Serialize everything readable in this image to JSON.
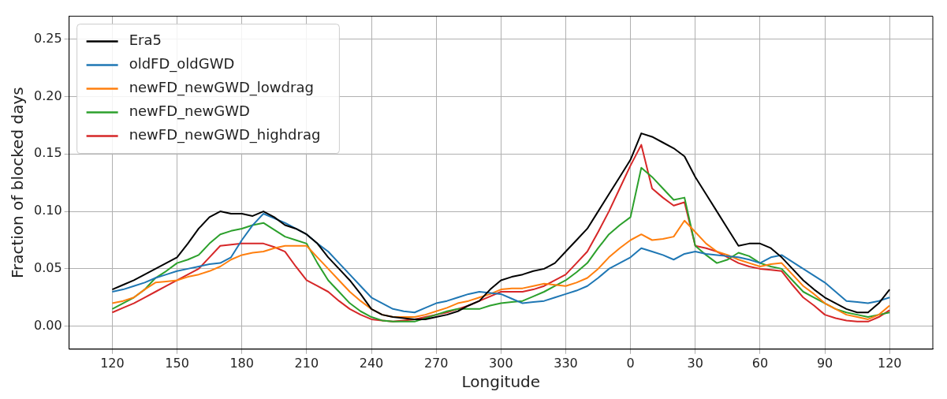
{
  "chart_data": {
    "type": "line",
    "xlabel": "Longitude",
    "ylabel": "Fraction of blocked days",
    "categories": [
      "120",
      null,
      null,
      null,
      null,
      null,
      "150",
      null,
      null,
      null,
      null,
      null,
      "180",
      null,
      null,
      null,
      null,
      null,
      "210",
      null,
      null,
      null,
      null,
      null,
      "240",
      null,
      null,
      null,
      null,
      null,
      "270",
      null,
      null,
      null,
      null,
      null,
      "300",
      null,
      null,
      null,
      null,
      null,
      "330",
      null,
      null,
      null,
      null,
      null,
      "0",
      null,
      null,
      null,
      null,
      null,
      "30",
      null,
      null,
      null,
      null,
      null,
      "60",
      null,
      null,
      null,
      null,
      null,
      "90",
      null,
      null,
      null,
      null,
      null,
      "120"
    ],
    "series": [
      {
        "name": "Era5",
        "color": "#000000",
        "values": [
          0.032,
          0.036,
          0.04,
          0.045,
          0.05,
          0.055,
          0.06,
          0.072,
          0.085,
          0.095,
          0.1,
          0.098,
          0.098,
          0.096,
          0.1,
          0.095,
          0.088,
          0.085,
          0.08,
          0.072,
          0.06,
          0.05,
          0.04,
          0.028,
          0.015,
          0.01,
          0.008,
          0.007,
          0.006,
          0.006,
          0.008,
          0.01,
          0.013,
          0.018,
          0.022,
          0.032,
          0.04,
          0.043,
          0.045,
          0.048,
          0.05,
          0.055,
          0.065,
          0.075,
          0.085,
          0.1,
          0.115,
          0.13,
          0.145,
          0.168,
          0.165,
          0.16,
          0.155,
          0.148,
          0.13,
          0.115,
          0.1,
          0.085,
          0.07,
          0.072,
          0.072,
          0.068,
          0.06,
          0.05,
          0.04,
          0.032,
          0.025,
          0.02,
          0.015,
          0.012,
          0.012,
          0.02,
          0.032
        ]
      },
      {
        "name": "oldFD_oldGWD",
        "color": "#1f77b4",
        "values": [
          0.03,
          0.032,
          0.035,
          0.038,
          0.042,
          0.045,
          0.048,
          0.05,
          0.052,
          0.054,
          0.055,
          0.06,
          0.075,
          0.088,
          0.098,
          0.094,
          0.09,
          0.085,
          0.08,
          0.072,
          0.065,
          0.055,
          0.045,
          0.035,
          0.025,
          0.02,
          0.015,
          0.013,
          0.012,
          0.016,
          0.02,
          0.022,
          0.025,
          0.028,
          0.03,
          0.029,
          0.028,
          0.024,
          0.02,
          0.021,
          0.022,
          0.025,
          0.028,
          0.031,
          0.035,
          0.042,
          0.05,
          0.055,
          0.06,
          0.068,
          0.065,
          0.062,
          0.058,
          0.063,
          0.065,
          0.063,
          0.062,
          0.061,
          0.06,
          0.058,
          0.055,
          0.06,
          0.062,
          0.056,
          0.05,
          0.044,
          0.038,
          0.03,
          0.022,
          0.021,
          0.02,
          0.022,
          0.025
        ]
      },
      {
        "name": "newFD_newGWD_lowdrag",
        "color": "#ff7f0e",
        "values": [
          0.02,
          0.022,
          0.025,
          0.032,
          0.038,
          0.039,
          0.04,
          0.043,
          0.045,
          0.048,
          0.052,
          0.058,
          0.062,
          0.064,
          0.065,
          0.068,
          0.07,
          0.07,
          0.07,
          0.06,
          0.05,
          0.04,
          0.03,
          0.022,
          0.015,
          0.01,
          0.008,
          0.008,
          0.008,
          0.01,
          0.013,
          0.016,
          0.02,
          0.022,
          0.025,
          0.028,
          0.032,
          0.033,
          0.033,
          0.035,
          0.037,
          0.036,
          0.035,
          0.038,
          0.042,
          0.05,
          0.06,
          0.068,
          0.075,
          0.08,
          0.075,
          0.076,
          0.078,
          0.092,
          0.082,
          0.072,
          0.065,
          0.062,
          0.058,
          0.055,
          0.052,
          0.054,
          0.055,
          0.045,
          0.035,
          0.028,
          0.02,
          0.015,
          0.01,
          0.008,
          0.006,
          0.01,
          0.018
        ]
      },
      {
        "name": "newFD_newGWD",
        "color": "#2ca02c",
        "values": [
          0.015,
          0.02,
          0.025,
          0.032,
          0.042,
          0.048,
          0.055,
          0.058,
          0.062,
          0.072,
          0.08,
          0.083,
          0.085,
          0.088,
          0.09,
          0.084,
          0.078,
          0.075,
          0.072,
          0.055,
          0.04,
          0.03,
          0.02,
          0.013,
          0.008,
          0.005,
          0.004,
          0.004,
          0.004,
          0.007,
          0.01,
          0.013,
          0.015,
          0.015,
          0.015,
          0.018,
          0.02,
          0.021,
          0.022,
          0.026,
          0.03,
          0.035,
          0.04,
          0.047,
          0.055,
          0.068,
          0.08,
          0.088,
          0.095,
          0.138,
          0.13,
          0.12,
          0.11,
          0.112,
          0.07,
          0.062,
          0.055,
          0.058,
          0.064,
          0.061,
          0.055,
          0.052,
          0.05,
          0.04,
          0.03,
          0.025,
          0.02,
          0.015,
          0.012,
          0.01,
          0.008,
          0.01,
          0.012
        ]
      },
      {
        "name": "newFD_newGWD_highdrag",
        "color": "#d62728",
        "values": [
          0.012,
          0.016,
          0.02,
          0.025,
          0.03,
          0.035,
          0.04,
          0.045,
          0.05,
          0.06,
          0.07,
          0.071,
          0.072,
          0.072,
          0.072,
          0.069,
          0.065,
          0.052,
          0.04,
          0.035,
          0.03,
          0.022,
          0.015,
          0.01,
          0.006,
          0.005,
          0.004,
          0.005,
          0.006,
          0.008,
          0.01,
          0.012,
          0.015,
          0.018,
          0.022,
          0.026,
          0.03,
          0.03,
          0.03,
          0.032,
          0.035,
          0.04,
          0.045,
          0.055,
          0.065,
          0.082,
          0.1,
          0.12,
          0.14,
          0.158,
          0.12,
          0.112,
          0.105,
          0.108,
          0.07,
          0.068,
          0.065,
          0.06,
          0.055,
          0.052,
          0.05,
          0.049,
          0.048,
          0.036,
          0.025,
          0.018,
          0.01,
          0.007,
          0.005,
          0.004,
          0.004,
          0.008,
          0.014
        ]
      }
    ],
    "ylim": [
      -0.02,
      0.27
    ],
    "yticks": [
      {
        "value": 0,
        "label": "0.00"
      },
      {
        "value": 0.05,
        "label": "0.05"
      },
      {
        "value": 0.1,
        "label": "0.10"
      },
      {
        "value": 0.15,
        "label": "0.15"
      },
      {
        "value": 0.2,
        "label": "0.20"
      },
      {
        "value": 0.25,
        "label": "0.25"
      }
    ],
    "grid": true,
    "legend": "top left",
    "marker": "none",
    "line_style": "solid"
  }
}
